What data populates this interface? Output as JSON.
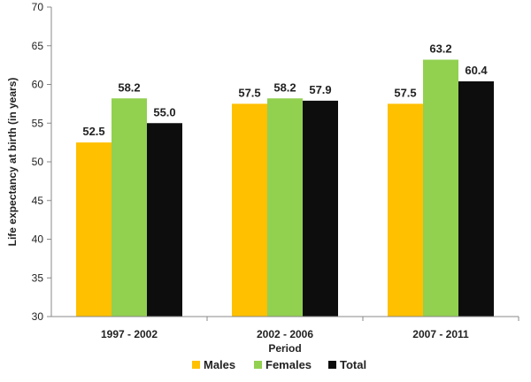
{
  "chart_data": {
    "type": "bar",
    "title": "",
    "xlabel": "Period",
    "ylabel": "Life expectancy at birth (in years)",
    "categories": [
      "1997 - 2002",
      "2002 - 2006",
      "2007 - 2011"
    ],
    "ylim": [
      30,
      70
    ],
    "yticks": [
      "30",
      "35",
      "40",
      "45",
      "50",
      "55",
      "60",
      "65",
      "70"
    ],
    "grid": false,
    "legend_position": "bottom",
    "series": [
      {
        "name": "Males",
        "color": "#FFC000",
        "values": [
          52.5,
          57.5,
          57.5
        ],
        "labels": [
          "52.5",
          "57.5",
          "57.5"
        ]
      },
      {
        "name": "Females",
        "color": "#92D050",
        "values": [
          58.2,
          58.2,
          63.2
        ],
        "labels": [
          "58.2",
          "58.2",
          "63.2"
        ]
      },
      {
        "name": "Total",
        "color": "#0D0D0D",
        "values": [
          55.0,
          57.9,
          60.4
        ],
        "labels": [
          "55.0",
          "57.9",
          "60.4"
        ]
      }
    ]
  }
}
